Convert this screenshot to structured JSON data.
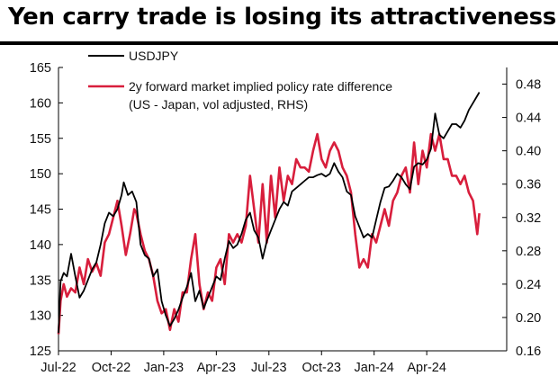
{
  "title": "Yen carry trade is losing its attractiveness",
  "chart_data": {
    "type": "line",
    "title": "Yen carry trade is losing its attractiveness",
    "x_ticks": [
      "Jul-22",
      "Oct-22",
      "Jan-23",
      "Apr-23",
      "Jul-23",
      "Oct-23",
      "Jan-24",
      "Apr-24"
    ],
    "x_range": [
      2022.5,
      2024.63
    ],
    "left_axis": {
      "ylim": [
        125,
        165
      ],
      "ticks": [
        "125",
        "130",
        "135",
        "140",
        "145",
        "150",
        "155",
        "160",
        "165"
      ]
    },
    "right_axis": {
      "ylim": [
        0.16,
        0.5
      ],
      "ticks": [
        "0.16",
        "0.20",
        "0.24",
        "0.28",
        "0.32",
        "0.36",
        "0.40",
        "0.44",
        "0.48"
      ]
    },
    "grid": false,
    "legend_position": "top-left",
    "legend": [
      {
        "label": "USDJPY",
        "color": "#000000"
      },
      {
        "label": "2y forward market implied policy rate difference",
        "label2": "(US - Japan, vol adjusted, RHS)",
        "color": "#d81e3c"
      }
    ],
    "series": [
      {
        "name": "USDJPY",
        "axis": "left",
        "color": "#000000",
        "points": [
          [
            2022.5,
            127.5
          ],
          [
            2022.51,
            134.8
          ],
          [
            2022.525,
            136.0
          ],
          [
            2022.54,
            135.5
          ],
          [
            2022.56,
            138.7
          ],
          [
            2022.58,
            135.5
          ],
          [
            2022.6,
            132.5
          ],
          [
            2022.62,
            133.5
          ],
          [
            2022.64,
            135.0
          ],
          [
            2022.66,
            136.5
          ],
          [
            2022.68,
            137.5
          ],
          [
            2022.7,
            140.0
          ],
          [
            2022.72,
            143.0
          ],
          [
            2022.74,
            144.5
          ],
          [
            2022.76,
            144.0
          ],
          [
            2022.78,
            145.0
          ],
          [
            2022.8,
            147.0
          ],
          [
            2022.81,
            148.8
          ],
          [
            2022.83,
            147.0
          ],
          [
            2022.85,
            147.5
          ],
          [
            2022.87,
            146.0
          ],
          [
            2022.89,
            140.0
          ],
          [
            2022.91,
            138.5
          ],
          [
            2022.93,
            138.0
          ],
          [
            2022.95,
            135.5
          ],
          [
            2022.97,
            136.5
          ],
          [
            2022.99,
            132.0
          ],
          [
            2023.01,
            130.0
          ],
          [
            2023.03,
            128.5
          ],
          [
            2023.05,
            129.5
          ],
          [
            2023.07,
            130.8
          ],
          [
            2023.09,
            132.5
          ],
          [
            2023.11,
            134.0
          ],
          [
            2023.13,
            136.0
          ],
          [
            2023.15,
            132.0
          ],
          [
            2023.17,
            133.5
          ],
          [
            2023.19,
            131.0
          ],
          [
            2023.21,
            132.5
          ],
          [
            2023.23,
            134.0
          ],
          [
            2023.25,
            135.5
          ],
          [
            2023.27,
            135.0
          ],
          [
            2023.29,
            138.0
          ],
          [
            2023.31,
            140.5
          ],
          [
            2023.33,
            139.5
          ],
          [
            2023.35,
            140.0
          ],
          [
            2023.37,
            141.5
          ],
          [
            2023.39,
            143.5
          ],
          [
            2023.41,
            144.5
          ],
          [
            2023.43,
            142.0
          ],
          [
            2023.45,
            141.0
          ],
          [
            2023.47,
            138.0
          ],
          [
            2023.49,
            140.5
          ],
          [
            2023.51,
            142.0
          ],
          [
            2023.53,
            143.5
          ],
          [
            2023.55,
            145.0
          ],
          [
            2023.57,
            146.0
          ],
          [
            2023.59,
            145.5
          ],
          [
            2023.61,
            147.5
          ],
          [
            2023.63,
            148.0
          ],
          [
            2023.65,
            148.5
          ],
          [
            2023.67,
            149.0
          ],
          [
            2023.69,
            149.5
          ],
          [
            2023.71,
            149.5
          ],
          [
            2023.73,
            149.8
          ],
          [
            2023.75,
            150.0
          ],
          [
            2023.77,
            149.6
          ],
          [
            2023.79,
            150.0
          ],
          [
            2023.81,
            151.5
          ],
          [
            2023.83,
            150.3
          ],
          [
            2023.85,
            149.5
          ],
          [
            2023.87,
            147.5
          ],
          [
            2023.89,
            147.0
          ],
          [
            2023.91,
            144.0
          ],
          [
            2023.93,
            142.5
          ],
          [
            2023.95,
            141.0
          ],
          [
            2023.97,
            141.5
          ],
          [
            2023.99,
            141.0
          ],
          [
            2024.01,
            143.5
          ],
          [
            2024.03,
            146.0
          ],
          [
            2024.05,
            148.0
          ],
          [
            2024.07,
            148.2
          ],
          [
            2024.09,
            149.0
          ],
          [
            2024.11,
            150.0
          ],
          [
            2024.13,
            149.5
          ],
          [
            2024.15,
            148.5
          ],
          [
            2024.17,
            147.8
          ],
          [
            2024.19,
            151.0
          ],
          [
            2024.21,
            151.5
          ],
          [
            2024.23,
            151.3
          ],
          [
            2024.25,
            152.0
          ],
          [
            2024.27,
            153.5
          ],
          [
            2024.29,
            158.5
          ],
          [
            2024.31,
            155.5
          ],
          [
            2024.33,
            155.0
          ],
          [
            2024.35,
            156.0
          ],
          [
            2024.37,
            157.0
          ],
          [
            2024.39,
            157.0
          ],
          [
            2024.41,
            156.5
          ],
          [
            2024.43,
            157.5
          ],
          [
            2024.45,
            159.0
          ],
          [
            2024.47,
            160.0
          ],
          [
            2024.49,
            161.0
          ],
          [
            2024.5,
            161.5
          ]
        ]
      },
      {
        "name": "2y forward market implied policy rate difference (US - Japan, vol adjusted, RHS)",
        "axis": "right",
        "color": "#d81e3c",
        "points": [
          [
            2022.5,
            0.18
          ],
          [
            2022.51,
            0.22
          ],
          [
            2022.525,
            0.24
          ],
          [
            2022.54,
            0.225
          ],
          [
            2022.56,
            0.235
          ],
          [
            2022.58,
            0.23
          ],
          [
            2022.6,
            0.26
          ],
          [
            2022.62,
            0.24
          ],
          [
            2022.64,
            0.27
          ],
          [
            2022.66,
            0.255
          ],
          [
            2022.68,
            0.265
          ],
          [
            2022.7,
            0.25
          ],
          [
            2022.72,
            0.29
          ],
          [
            2022.74,
            0.3
          ],
          [
            2022.76,
            0.32
          ],
          [
            2022.78,
            0.34
          ],
          [
            2022.8,
            0.31
          ],
          [
            2022.82,
            0.275
          ],
          [
            2022.84,
            0.3
          ],
          [
            2022.86,
            0.33
          ],
          [
            2022.87,
            0.325
          ],
          [
            2022.89,
            0.3
          ],
          [
            2022.91,
            0.28
          ],
          [
            2022.93,
            0.27
          ],
          [
            2022.95,
            0.25
          ],
          [
            2022.97,
            0.22
          ],
          [
            2022.99,
            0.205
          ],
          [
            2023.01,
            0.21
          ],
          [
            2023.03,
            0.185
          ],
          [
            2023.05,
            0.21
          ],
          [
            2023.07,
            0.195
          ],
          [
            2023.09,
            0.23
          ],
          [
            2023.11,
            0.23
          ],
          [
            2023.13,
            0.27
          ],
          [
            2023.15,
            0.3
          ],
          [
            2023.17,
            0.24
          ],
          [
            2023.19,
            0.21
          ],
          [
            2023.21,
            0.23
          ],
          [
            2023.23,
            0.22
          ],
          [
            2023.25,
            0.26
          ],
          [
            2023.27,
            0.27
          ],
          [
            2023.29,
            0.24
          ],
          [
            2023.31,
            0.3
          ],
          [
            2023.33,
            0.29
          ],
          [
            2023.35,
            0.3
          ],
          [
            2023.37,
            0.29
          ],
          [
            2023.39,
            0.31
          ],
          [
            2023.41,
            0.37
          ],
          [
            2023.43,
            0.33
          ],
          [
            2023.45,
            0.29
          ],
          [
            2023.47,
            0.36
          ],
          [
            2023.49,
            0.29
          ],
          [
            2023.51,
            0.37
          ],
          [
            2023.53,
            0.32
          ],
          [
            2023.55,
            0.38
          ],
          [
            2023.57,
            0.34
          ],
          [
            2023.59,
            0.37
          ],
          [
            2023.61,
            0.36
          ],
          [
            2023.63,
            0.39
          ],
          [
            2023.65,
            0.38
          ],
          [
            2023.67,
            0.38
          ],
          [
            2023.69,
            0.375
          ],
          [
            2023.71,
            0.4
          ],
          [
            2023.73,
            0.42
          ],
          [
            2023.75,
            0.39
          ],
          [
            2023.77,
            0.38
          ],
          [
            2023.79,
            0.4
          ],
          [
            2023.81,
            0.41
          ],
          [
            2023.83,
            0.4
          ],
          [
            2023.85,
            0.38
          ],
          [
            2023.87,
            0.37
          ],
          [
            2023.89,
            0.35
          ],
          [
            2023.91,
            0.3
          ],
          [
            2023.93,
            0.26
          ],
          [
            2023.95,
            0.27
          ],
          [
            2023.97,
            0.26
          ],
          [
            2023.99,
            0.3
          ],
          [
            2024.01,
            0.29
          ],
          [
            2024.03,
            0.31
          ],
          [
            2024.05,
            0.33
          ],
          [
            2024.07,
            0.31
          ],
          [
            2024.09,
            0.34
          ],
          [
            2024.11,
            0.35
          ],
          [
            2024.13,
            0.37
          ],
          [
            2024.15,
            0.38
          ],
          [
            2024.17,
            0.35
          ],
          [
            2024.19,
            0.41
          ],
          [
            2024.21,
            0.36
          ],
          [
            2024.23,
            0.4
          ],
          [
            2024.25,
            0.38
          ],
          [
            2024.27,
            0.42
          ],
          [
            2024.29,
            0.4
          ],
          [
            2024.31,
            0.42
          ],
          [
            2024.33,
            0.39
          ],
          [
            2024.35,
            0.39
          ],
          [
            2024.37,
            0.37
          ],
          [
            2024.39,
            0.37
          ],
          [
            2024.41,
            0.36
          ],
          [
            2024.43,
            0.37
          ],
          [
            2024.45,
            0.35
          ],
          [
            2024.47,
            0.34
          ],
          [
            2024.49,
            0.3
          ],
          [
            2024.5,
            0.325
          ]
        ]
      }
    ]
  }
}
